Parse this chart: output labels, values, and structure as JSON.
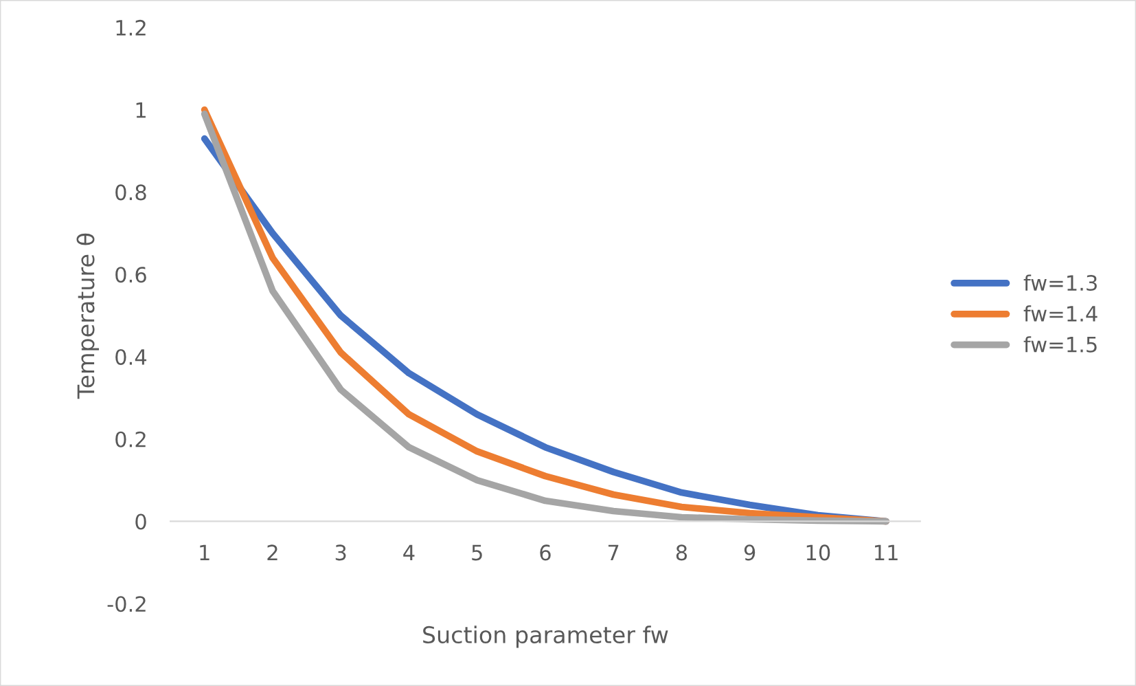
{
  "chart_data": {
    "type": "line",
    "xlabel": "Suction parameter fw",
    "ylabel": "Temperature θ",
    "categories": [
      "1",
      "2",
      "3",
      "4",
      "5",
      "6",
      "7",
      "8",
      "9",
      "10",
      "11"
    ],
    "series": [
      {
        "name": "fw=1.3",
        "color": "#4472c4",
        "values": [
          0.93,
          0.7,
          0.5,
          0.36,
          0.26,
          0.18,
          0.12,
          0.07,
          0.04,
          0.015,
          0
        ]
      },
      {
        "name": "fw=1.4",
        "color": "#ed7d31",
        "values": [
          1.0,
          0.64,
          0.41,
          0.26,
          0.17,
          0.11,
          0.065,
          0.035,
          0.02,
          0.01,
          0
        ]
      },
      {
        "name": "fw=1.5",
        "color": "#a5a5a5",
        "values": [
          0.99,
          0.56,
          0.32,
          0.18,
          0.1,
          0.05,
          0.025,
          0.01,
          0.005,
          0.002,
          0
        ]
      }
    ],
    "ylim": [
      -0.2,
      1.2
    ],
    "yticks": [
      -0.2,
      0,
      0.2,
      0.4,
      0.6,
      0.8,
      1,
      1.2
    ],
    "grid": false,
    "legend": "right",
    "marker": "none",
    "line_style": "solid"
  }
}
